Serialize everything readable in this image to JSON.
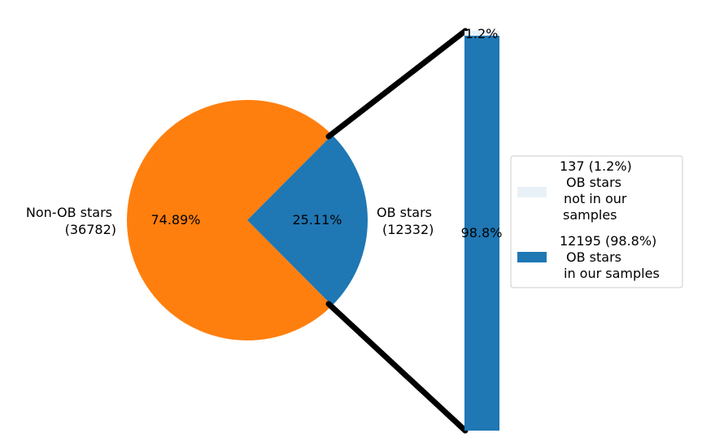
{
  "chart_data": [
    {
      "type": "pie",
      "slices": [
        {
          "name": "Non-OB stars",
          "count_label": "(36782)",
          "value": 36782,
          "pct_label": "74.89%",
          "color": "#ff7f0e"
        },
        {
          "name": "OB stars",
          "count_label": "(12332)",
          "value": 12332,
          "pct_label": "25.11%",
          "color": "#1f77b4"
        }
      ]
    },
    {
      "type": "bar",
      "stacked": true,
      "segments": [
        {
          "value": 12195,
          "fraction": 0.988,
          "pct_label": "98.8%",
          "color": "#1f77b4",
          "legend_lines": [
            "12195 (98.8%)",
            "OB stars",
            "in our samples"
          ]
        },
        {
          "value": 137,
          "fraction": 0.012,
          "pct_label": "1.2%",
          "color": "#e8f1f8",
          "legend_lines": [
            "137 (1.2%)",
            "OB stars",
            "not in our",
            "samples"
          ]
        }
      ],
      "legend_order": [
        1,
        0
      ],
      "legend_position": "right"
    }
  ]
}
